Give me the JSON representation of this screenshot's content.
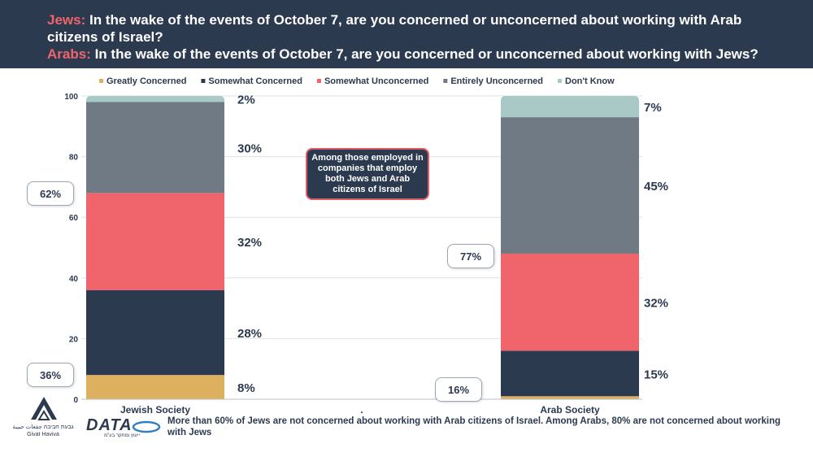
{
  "header": {
    "line1_tag": "Jews:",
    "line1_text": " In the wake of the events of October 7, are you concerned or unconcerned about working with Arab citizens of Israel?",
    "line2_tag": "Arabs:",
    "line2_text": " In the wake of the events of October 7, are you concerned or unconcerned about working with Jews?"
  },
  "chart_data": {
    "type": "bar",
    "stacked": true,
    "title": "",
    "xlabel": "",
    "ylabel": "",
    "ylim": [
      0,
      100
    ],
    "yticks": [
      "0",
      "20",
      "40",
      "60",
      "80",
      "100"
    ],
    "categories": [
      "Jewish Society",
      ".",
      "Arab Society"
    ],
    "series": [
      {
        "name": "Greatly Concerned",
        "color": "#dcb05f",
        "values": [
          8,
          0,
          1
        ],
        "labels": [
          "8%",
          "",
          ""
        ]
      },
      {
        "name": "Somewhat Concerned",
        "color": "#2c3a4f",
        "values": [
          28,
          0,
          15
        ],
        "labels": [
          "28%",
          "",
          "15%"
        ]
      },
      {
        "name": "Somewhat Unconcerned",
        "color": "#f0646c",
        "values": [
          32,
          0,
          32
        ],
        "labels": [
          "32%",
          "",
          "32%"
        ]
      },
      {
        "name": "Entirely Unconcerned",
        "color": "#6f7a85",
        "values": [
          30,
          0,
          45
        ],
        "labels": [
          "30%",
          "",
          "45%"
        ]
      },
      {
        "name": "Don't Know",
        "color": "#a9c9c6",
        "values": [
          2,
          0,
          7
        ],
        "labels": [
          "2%",
          "",
          "7%"
        ]
      }
    ],
    "legend_position": "top",
    "annotation": "Among those employed in companies that employ both Jews and Arab citizens of Israel"
  },
  "callouts": {
    "jews_unconcerned": "62%",
    "jews_concerned": "36%",
    "arabs_unconcerned": "77%",
    "arabs_concerned": "16%"
  },
  "footer": {
    "summary": "More than 60% of Jews are not concerned about working with Arab citizens of Israel. Among Arabs, 80% are not concerned about working with Jews",
    "logo_givat_haviva_hebrew": "גבעת חביבה جفعات حبيبة",
    "logo_givat_haviva": "Givat Haviva",
    "logo_data": "DATA",
    "logo_data_sub": "ייעוץ ומחקר בע\"מ"
  }
}
